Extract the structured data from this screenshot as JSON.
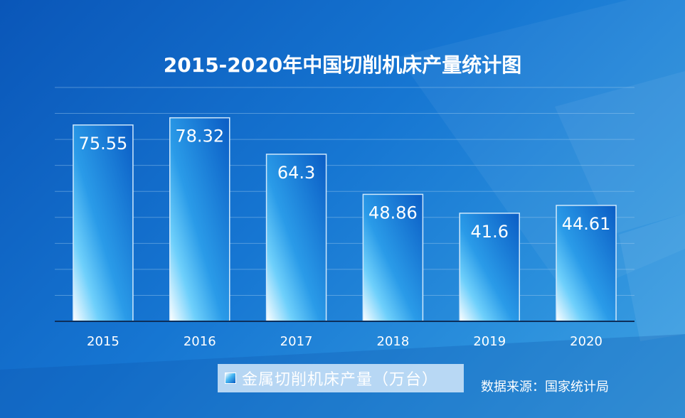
{
  "chart_data": {
    "type": "bar",
    "title": "2015-2020年中国切削机床产量统计图",
    "categories": [
      "2015",
      "2016",
      "2017",
      "2018",
      "2019",
      "2020"
    ],
    "series": [
      {
        "name": "金属切削机床产量（万台）",
        "values": [
          75.55,
          78.32,
          64.3,
          48.86,
          41.6,
          44.61
        ]
      }
    ],
    "ylim": [
      0,
      90
    ],
    "grid": true,
    "legend_position": "bottom-center",
    "source": "数据来源：国家统计局"
  },
  "colors": {
    "background": "#1676d2",
    "bar_light": "#ffffff",
    "bar_mid": "#49b8f2",
    "bar_dark": "#0a5cc4",
    "text": "#ffffff"
  }
}
